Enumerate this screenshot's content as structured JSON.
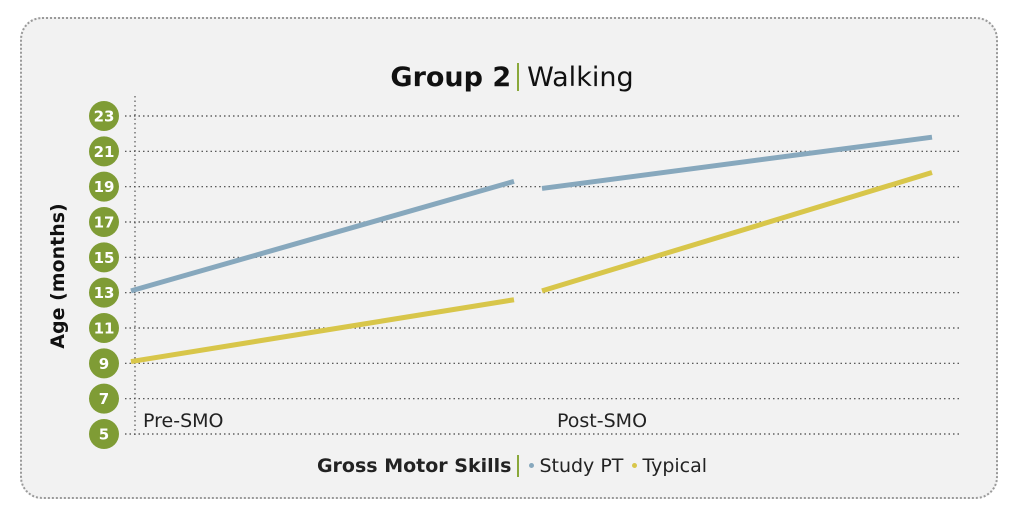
{
  "chart_data": {
    "type": "line",
    "title_bold": "Group 2",
    "title_rest": "Walking",
    "ylabel": "Age (months)",
    "yticks": [
      5,
      7,
      9,
      11,
      13,
      15,
      17,
      19,
      21,
      23
    ],
    "ylim": [
      5,
      23
    ],
    "categories": [
      "Pre-SMO",
      "Post-SMO"
    ],
    "legend_title": "Gross Motor Skills",
    "grid": "horizontal dotted",
    "legend_position": "bottom",
    "series": [
      {
        "name": "Study PT",
        "color": "#87a8bd",
        "segments": [
          {
            "x": [
              0,
              1
            ],
            "y": [
              13.1,
              19.3
            ]
          },
          {
            "x": [
              1,
              2
            ],
            "y": [
              18.9,
              21.8
            ]
          }
        ]
      },
      {
        "name": "Typical",
        "color": "#d8c64a",
        "segments": [
          {
            "x": [
              0,
              1
            ],
            "y": [
              9.1,
              12.6
            ]
          },
          {
            "x": [
              1,
              2
            ],
            "y": [
              13.1,
              19.8
            ]
          }
        ]
      }
    ],
    "tick_badge_color": "#7f9c35"
  }
}
